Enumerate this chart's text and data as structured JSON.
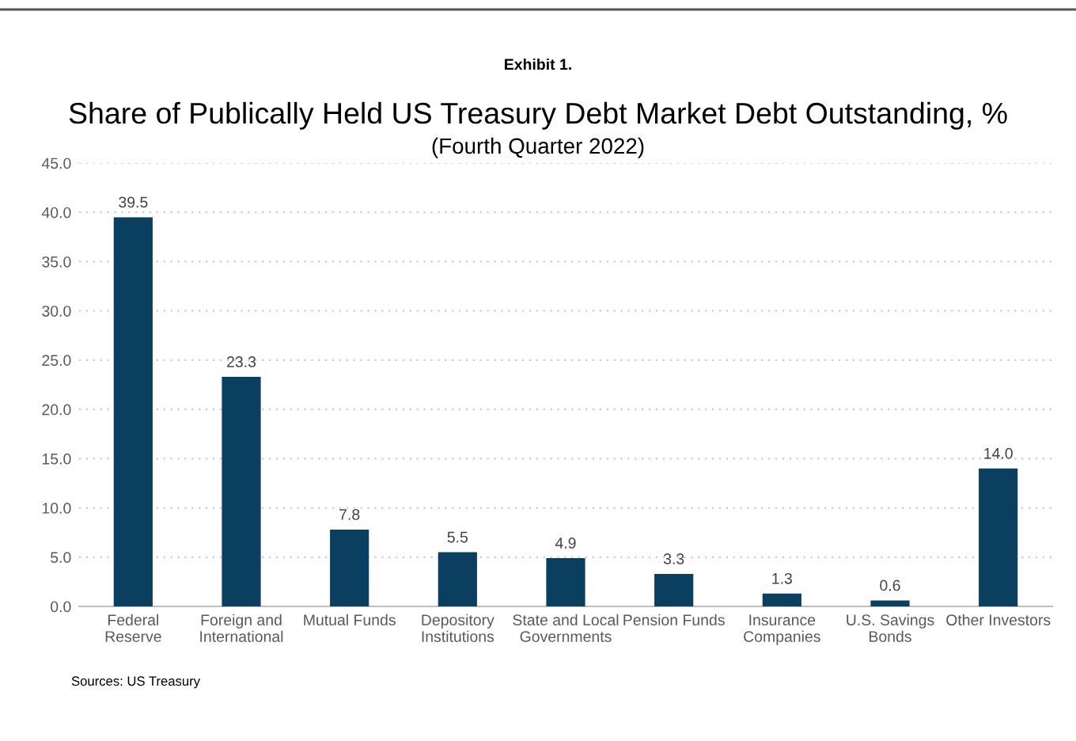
{
  "chart_data": {
    "type": "bar",
    "title": "Exhibit 1.",
    "subtitle": "Share of Publically Held US Treasury Debt Market Debt Outstanding, %\n(Fourth Quarter 2022)",
    "categories": [
      "Federal\nReserve",
      "Foreign and\nInternational",
      "Mutual Funds",
      "Depository\nInstitutions",
      "State and Local\nGovernments",
      "Pension Funds",
      "Insurance\nCompanies",
      "U.S. Savings\nBonds",
      "Other Investors"
    ],
    "values": [
      39.5,
      23.3,
      7.8,
      5.5,
      4.9,
      3.3,
      1.3,
      0.6,
      14.0
    ],
    "value_labels": [
      "39.5",
      "23.3",
      "7.8",
      "5.5",
      "4.9",
      "3.3",
      "1.3",
      "0.6",
      "14.0"
    ],
    "color": "#0b3f60",
    "ylim": [
      0,
      45
    ],
    "yticks": [
      {
        "value": 0,
        "label": "0.0"
      },
      {
        "value": 5,
        "label": "5.0"
      },
      {
        "value": 10,
        "label": "10.0"
      },
      {
        "value": 15,
        "label": "15.0"
      },
      {
        "value": 20,
        "label": "20.0"
      },
      {
        "value": 25,
        "label": "25.0"
      },
      {
        "value": 30,
        "label": "30.0"
      },
      {
        "value": 35,
        "label": "35.0"
      },
      {
        "value": 40,
        "label": "40.0"
      },
      {
        "value": 45,
        "label": "45.0"
      }
    ],
    "grid": "y",
    "annotations": [
      "Sources: US Treasury"
    ]
  }
}
